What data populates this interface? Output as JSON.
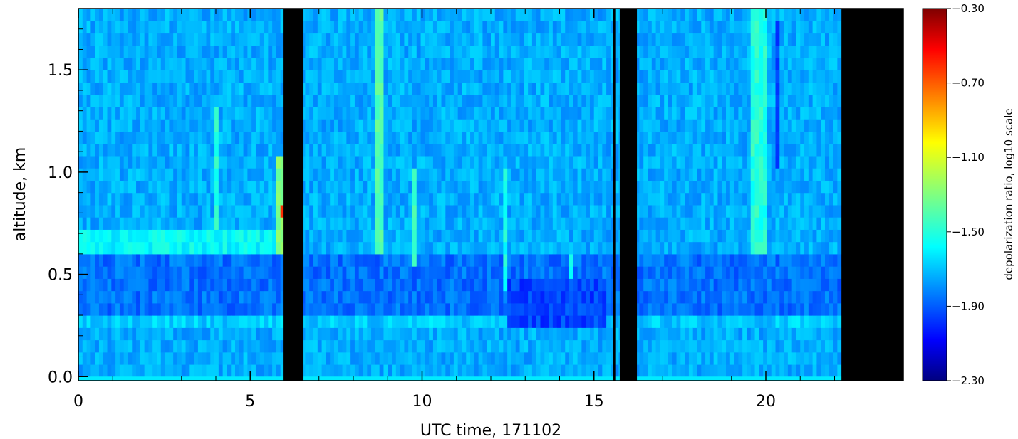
{
  "chart_data": {
    "type": "heatmap",
    "title": "",
    "xlabel": "UTC time, 171102",
    "ylabel": "altitude, km",
    "xlim": [
      0,
      24
    ],
    "ylim": [
      -0.02,
      1.8
    ],
    "x_ticks": [
      0,
      5,
      10,
      15,
      20
    ],
    "x_tick_labels": [
      "0",
      "5",
      "10",
      "15",
      "20"
    ],
    "y_ticks": [
      0.0,
      0.5,
      1.0,
      1.5
    ],
    "y_tick_labels": [
      "0.0",
      "0.5",
      "1.0",
      "1.5"
    ],
    "grid": false,
    "colorbar": {
      "label": "depolarization ratio, log10 scale",
      "range": [
        -2.3,
        -0.3
      ],
      "ticks": [
        -0.3,
        -0.7,
        -1.1,
        -1.5,
        -1.9,
        -2.3
      ],
      "tick_labels": [
        "−0.30",
        "−0.70",
        "−1.10",
        "−1.50",
        "−1.90",
        "−2.30"
      ],
      "colormap": "jet"
    },
    "no_data_color": "#000000",
    "background_value": -1.75,
    "no_data_intervals_hours": [
      [
        5.95,
        6.55
      ],
      [
        15.55,
        15.62
      ],
      [
        15.75,
        16.25
      ],
      [
        22.2,
        24.0
      ]
    ],
    "altitude_layers_km": [
      {
        "from": 0.0,
        "to": 0.03,
        "value": -1.62
      },
      {
        "from": 0.03,
        "to": 0.22,
        "value": -1.74
      },
      {
        "from": 0.22,
        "to": 0.28,
        "value": -1.68
      },
      {
        "from": 0.28,
        "to": 0.58,
        "value": -1.86
      },
      {
        "from": 0.58,
        "to": 1.8,
        "value": -1.74
      }
    ],
    "features": [
      {
        "t0": 5.8,
        "t1": 5.95,
        "z0": 0.6,
        "z1": 1.1,
        "value": -1.3
      },
      {
        "t0": 5.85,
        "t1": 5.95,
        "z0": 0.8,
        "z1": 0.85,
        "value": -0.55
      },
      {
        "t0": 8.7,
        "t1": 8.9,
        "z0": 0.6,
        "z1": 1.8,
        "value": -1.4
      },
      {
        "t0": 9.7,
        "t1": 9.85,
        "z0": 0.55,
        "z1": 1.0,
        "value": -1.45
      },
      {
        "t0": 4.0,
        "t1": 4.1,
        "z0": 0.6,
        "z1": 1.35,
        "value": -1.5
      },
      {
        "t0": 19.6,
        "t1": 20.05,
        "z0": 0.6,
        "z1": 1.8,
        "value": -1.5
      },
      {
        "t0": 12.3,
        "t1": 12.45,
        "z0": 0.4,
        "z1": 1.0,
        "value": -1.55
      },
      {
        "t0": 14.3,
        "t1": 14.45,
        "z0": 0.45,
        "z1": 0.62,
        "value": -1.55
      },
      {
        "t0": 20.3,
        "t1": 20.45,
        "z0": 1.0,
        "z1": 1.75,
        "value": -1.95
      },
      {
        "t0": 12.5,
        "t1": 15.3,
        "z0": 0.27,
        "z1": 0.45,
        "value": -1.95
      },
      {
        "t0": 0.0,
        "t1": 5.8,
        "z0": 0.6,
        "z1": 0.7,
        "value": -1.58
      }
    ]
  }
}
